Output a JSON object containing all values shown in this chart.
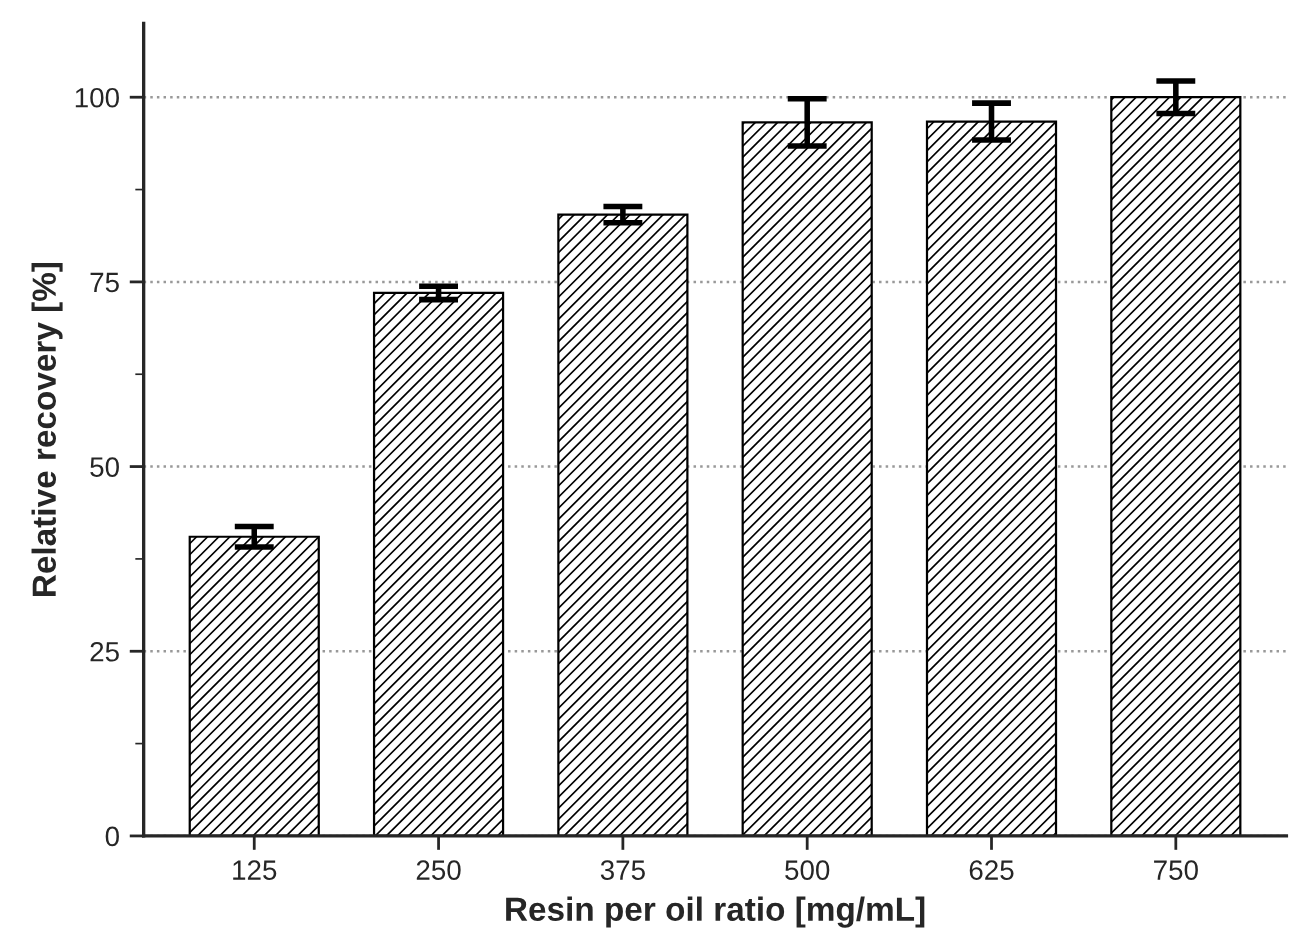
{
  "chart_data": {
    "type": "bar",
    "xlabel": "Resin per oil ratio [mg/mL]",
    "ylabel": "Relative recovery [%]",
    "categories": [
      "125",
      "250",
      "375",
      "500",
      "625",
      "750"
    ],
    "values": [
      40.5,
      73.5,
      84.1,
      96.6,
      96.7,
      100
    ],
    "errors": [
      1.4,
      0.9,
      1.1,
      3.2,
      2.5,
      2.2
    ],
    "color": "#000000",
    "ylim": [
      0,
      110
    ],
    "yticks": [
      0,
      25,
      50,
      75,
      100
    ],
    "grid": "y"
  }
}
